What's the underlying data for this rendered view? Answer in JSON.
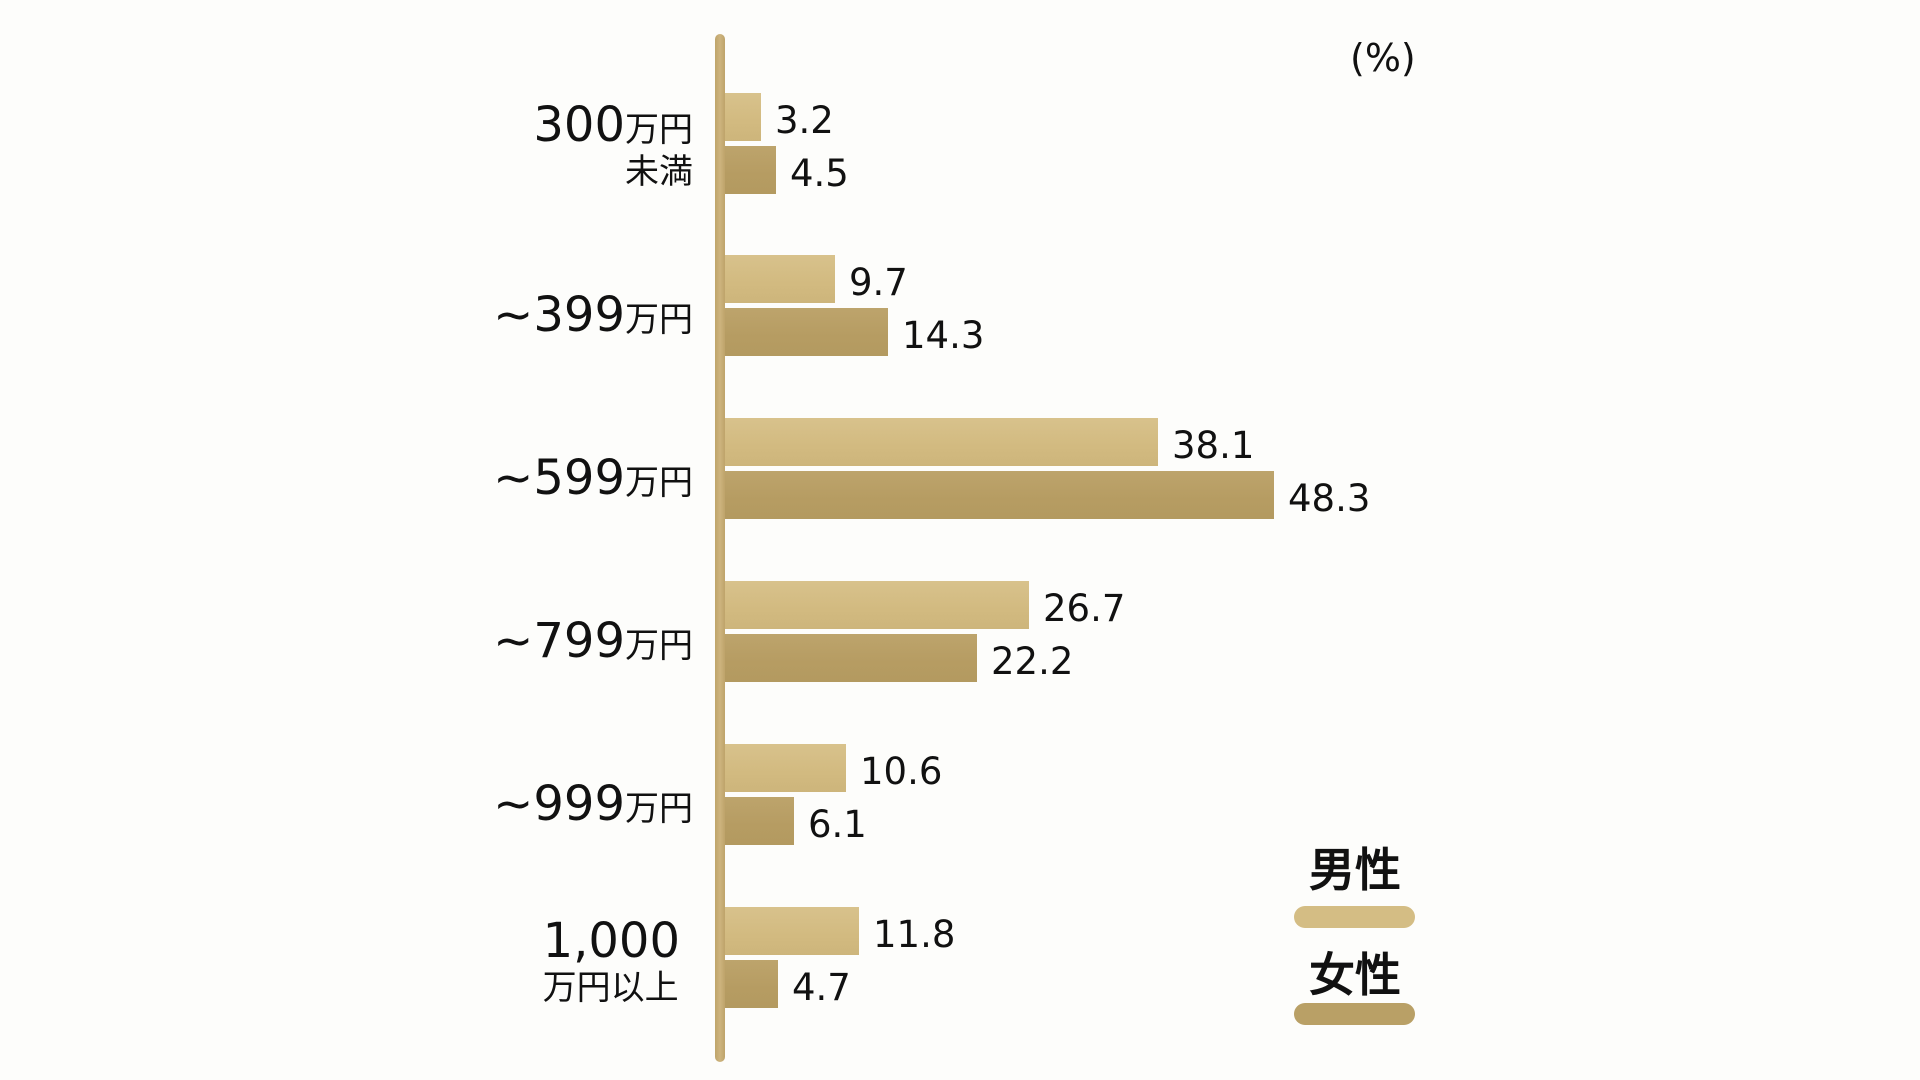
{
  "chart_data": {
    "type": "bar",
    "orientation": "horizontal",
    "title": "",
    "unit_label": "(%)",
    "xlabel": "",
    "ylabel": "",
    "categories": [
      "300万円未満",
      "~399万円",
      "~599万円",
      "~799万円",
      "~999万円",
      "1,000万円以上"
    ],
    "series": [
      {
        "name": "男性",
        "color": "#d4bd84",
        "values": [
          3.2,
          9.7,
          38.1,
          26.7,
          10.6,
          11.8
        ]
      },
      {
        "name": "女性",
        "color": "#b9a066",
        "values": [
          4.5,
          14.3,
          48.3,
          22.2,
          6.1,
          4.7
        ]
      }
    ],
    "xlim": [
      0,
      50
    ],
    "grid": false,
    "legend_position": "bottom-right"
  },
  "unit": "(%)",
  "rows": [
    {
      "num": "300",
      "yen": "万円",
      "line2": "未満",
      "male": "3.2",
      "female": "4.5"
    },
    {
      "num": "~399",
      "yen": "万円",
      "line2": "",
      "male": "9.7",
      "female": "14.3"
    },
    {
      "num": "~599",
      "yen": "万円",
      "line2": "",
      "male": "38.1",
      "female": "48.3"
    },
    {
      "num": "~799",
      "yen": "万円",
      "line2": "",
      "male": "26.7",
      "female": "22.2"
    },
    {
      "num": "~999",
      "yen": "万円",
      "line2": "",
      "male": "10.6",
      "female": "6.1"
    },
    {
      "num": "1,000",
      "yen": "",
      "line2": "万円以上",
      "male": "11.8",
      "female": "4.7"
    }
  ],
  "legend": {
    "male": {
      "label": "男性",
      "color": "#d4bd84"
    },
    "female": {
      "label": "女性",
      "color": "#b9a066"
    }
  }
}
